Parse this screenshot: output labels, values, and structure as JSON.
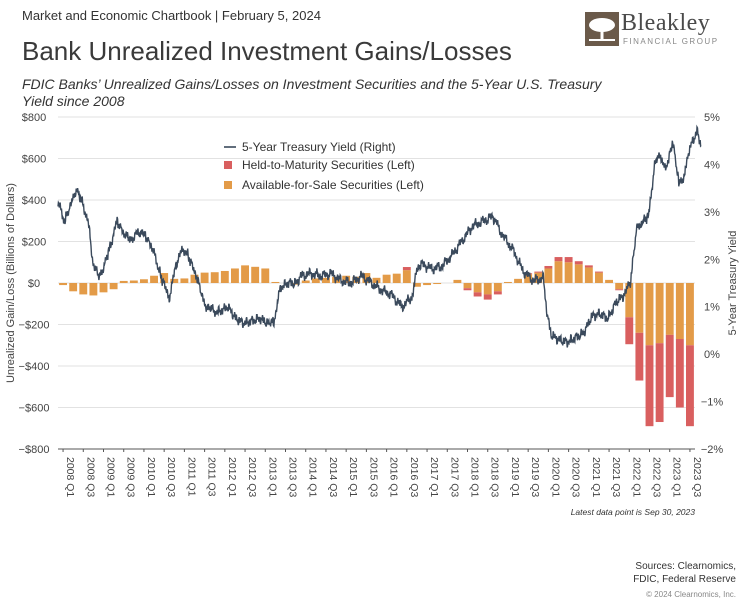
{
  "header": {
    "chartbook": "Market and Economic Chartbook | February 5, 2024",
    "logo_name": "Bleakley",
    "logo_sub": "FINANCIAL GROUP",
    "logo_icon": "tree-icon"
  },
  "title": "Bank Unrealized Investment Gains/Losses",
  "subtitle": "FDIC Banks’ Unrealized Gains/Losses on Investment Securities and the 5-Year U.S. Treasury Yield since 2008",
  "footnote": "Latest data point is Sep 30, 2023",
  "sources_line1": "Sources: Clearnomics,",
  "sources_line2": "FDIC, Federal Reserve",
  "copyright": "© 2024 Clearnomics, Inc.",
  "colors": {
    "htm": "#d95f5f",
    "afs": "#e39b48",
    "yield": "#3b4a5c"
  },
  "chart_data": {
    "type": "bar",
    "title": "Bank Unrealized Investment Gains/Losses",
    "ylabel_left": "Unrealized Gain/Loss (Billions of Dollars)",
    "ylabel_right": "5-Year Treasury Yield",
    "ylim_left": [
      -800,
      800
    ],
    "ylim_right": [
      -2,
      5
    ],
    "yticks_left": [
      "$800",
      "$600",
      "$400",
      "$200",
      "$0",
      "−$200",
      "−$400",
      "−$600",
      "−$800"
    ],
    "yticks_right": [
      "5%",
      "4%",
      "3%",
      "2%",
      "1%",
      "0%",
      "−1%",
      "−2%"
    ],
    "xtick_labels": [
      "2008 Q1",
      "2008 Q3",
      "2009 Q1",
      "2009 Q3",
      "2010 Q1",
      "2010 Q3",
      "2011 Q1",
      "2011 Q3",
      "2012 Q1",
      "2012 Q3",
      "2013 Q1",
      "2013 Q3",
      "2014 Q1",
      "2014 Q3",
      "2015 Q1",
      "2015 Q3",
      "2016 Q1",
      "2016 Q3",
      "2017 Q1",
      "2017 Q3",
      "2018 Q1",
      "2018 Q3",
      "2019 Q1",
      "2019 Q3",
      "2020 Q1",
      "2020 Q3",
      "2021 Q1",
      "2021 Q3",
      "2022 Q1",
      "2022 Q3",
      "2023 Q1",
      "2023 Q3"
    ],
    "legend": [
      "5-Year Treasury Yield (Right)",
      "Held-to-Maturity Securities (Left)",
      "Available-for-Sale Securities (Left)"
    ],
    "legend_position": "top-center",
    "quarters": [
      "2008 Q1",
      "2008 Q2",
      "2008 Q3",
      "2008 Q4",
      "2009 Q1",
      "2009 Q2",
      "2009 Q3",
      "2009 Q4",
      "2010 Q1",
      "2010 Q2",
      "2010 Q3",
      "2010 Q4",
      "2011 Q1",
      "2011 Q2",
      "2011 Q3",
      "2011 Q4",
      "2012 Q1",
      "2012 Q2",
      "2012 Q3",
      "2012 Q4",
      "2013 Q1",
      "2013 Q2",
      "2013 Q3",
      "2013 Q4",
      "2014 Q1",
      "2014 Q2",
      "2014 Q3",
      "2014 Q4",
      "2015 Q1",
      "2015 Q2",
      "2015 Q3",
      "2015 Q4",
      "2016 Q1",
      "2016 Q2",
      "2016 Q3",
      "2016 Q4",
      "2017 Q1",
      "2017 Q2",
      "2017 Q3",
      "2017 Q4",
      "2018 Q1",
      "2018 Q2",
      "2018 Q3",
      "2018 Q4",
      "2019 Q1",
      "2019 Q2",
      "2019 Q3",
      "2019 Q4",
      "2020 Q1",
      "2020 Q2",
      "2020 Q3",
      "2020 Q4",
      "2021 Q1",
      "2021 Q2",
      "2021 Q3",
      "2021 Q4",
      "2022 Q1",
      "2022 Q2",
      "2022 Q3",
      "2022 Q4",
      "2023 Q1",
      "2023 Q2",
      "2023 Q3"
    ],
    "series": [
      {
        "name": "Available-for-Sale Securities (Left)",
        "values": [
          -10,
          -40,
          -55,
          -60,
          -45,
          -30,
          10,
          12,
          18,
          35,
          48,
          20,
          22,
          40,
          50,
          52,
          58,
          70,
          85,
          78,
          70,
          5,
          0,
          -8,
          12,
          22,
          25,
          30,
          35,
          30,
          48,
          25,
          40,
          45,
          62,
          -18,
          -10,
          -5,
          0,
          15,
          -25,
          -45,
          -55,
          -40,
          5,
          20,
          42,
          50,
          70,
          105,
          100,
          90,
          75,
          50,
          15,
          -30,
          -165,
          -240,
          -300,
          -290,
          -250,
          -270,
          -300
        ]
      },
      {
        "name": "Held-to-Maturity Securities (Left)",
        "values": [
          0,
          0,
          0,
          0,
          0,
          0,
          0,
          0,
          0,
          0,
          0,
          0,
          0,
          0,
          0,
          0,
          0,
          0,
          0,
          0,
          0,
          0,
          0,
          0,
          0,
          0,
          0,
          0,
          0,
          0,
          0,
          0,
          0,
          0,
          15,
          0,
          0,
          0,
          0,
          0,
          -10,
          -20,
          -25,
          -15,
          0,
          0,
          5,
          5,
          12,
          20,
          25,
          15,
          10,
          5,
          0,
          -5,
          -130,
          -230,
          -390,
          -380,
          -300,
          -330,
          -390
        ]
      },
      {
        "name": "5-Year Treasury Yield (Right)",
        "x": [
          2008.0,
          2008.15,
          2008.3,
          2008.45,
          2008.6,
          2008.75,
          2008.85,
          2009.0,
          2009.15,
          2009.3,
          2009.45,
          2009.6,
          2009.75,
          2009.9,
          2010.0,
          2010.15,
          2010.3,
          2010.45,
          2010.6,
          2010.75,
          2010.9,
          2011.0,
          2011.15,
          2011.3,
          2011.45,
          2011.6,
          2011.75,
          2011.9,
          2012.0,
          2012.2,
          2012.4,
          2012.6,
          2012.8,
          2013.0,
          2013.2,
          2013.35,
          2013.5,
          2013.7,
          2013.9,
          2014.0,
          2014.25,
          2014.5,
          2014.75,
          2015.0,
          2015.25,
          2015.5,
          2015.75,
          2016.0,
          2016.25,
          2016.5,
          2016.75,
          2016.9,
          2017.0,
          2017.25,
          2017.5,
          2017.75,
          2018.0,
          2018.25,
          2018.5,
          2018.75,
          2018.85,
          2019.0,
          2019.25,
          2019.5,
          2019.75,
          2020.0,
          2020.1,
          2020.2,
          2020.4,
          2020.6,
          2020.8,
          2021.0,
          2021.2,
          2021.4,
          2021.6,
          2021.8,
          2022.0,
          2022.15,
          2022.3,
          2022.45,
          2022.6,
          2022.75,
          2022.9,
          2023.0,
          2023.1,
          2023.2,
          2023.35,
          2023.5,
          2023.6,
          2023.7,
          2023.8,
          2023.9
        ],
        "values": [
          3.2,
          2.8,
          3.1,
          3.5,
          3.2,
          2.8,
          2.0,
          1.6,
          1.9,
          2.3,
          2.8,
          2.6,
          2.4,
          2.5,
          2.6,
          2.5,
          2.3,
          1.9,
          1.5,
          1.2,
          1.8,
          2.1,
          2.2,
          1.9,
          1.6,
          1.1,
          0.95,
          0.9,
          0.9,
          1.0,
          0.75,
          0.65,
          0.7,
          0.75,
          0.65,
          0.7,
          1.4,
          1.5,
          1.5,
          1.65,
          1.7,
          1.65,
          1.7,
          1.55,
          1.5,
          1.65,
          1.5,
          1.35,
          1.25,
          1.0,
          1.2,
          1.85,
          1.9,
          1.8,
          1.85,
          2.1,
          2.4,
          2.7,
          2.8,
          2.9,
          2.75,
          2.5,
          2.2,
          1.75,
          1.55,
          1.6,
          0.8,
          0.4,
          0.3,
          0.25,
          0.35,
          0.45,
          0.8,
          0.85,
          0.75,
          1.1,
          1.25,
          1.5,
          2.6,
          2.8,
          2.9,
          4.0,
          4.2,
          3.9,
          4.1,
          4.5,
          3.6,
          3.8,
          4.3,
          4.5,
          4.7,
          4.4
        ]
      }
    ]
  }
}
